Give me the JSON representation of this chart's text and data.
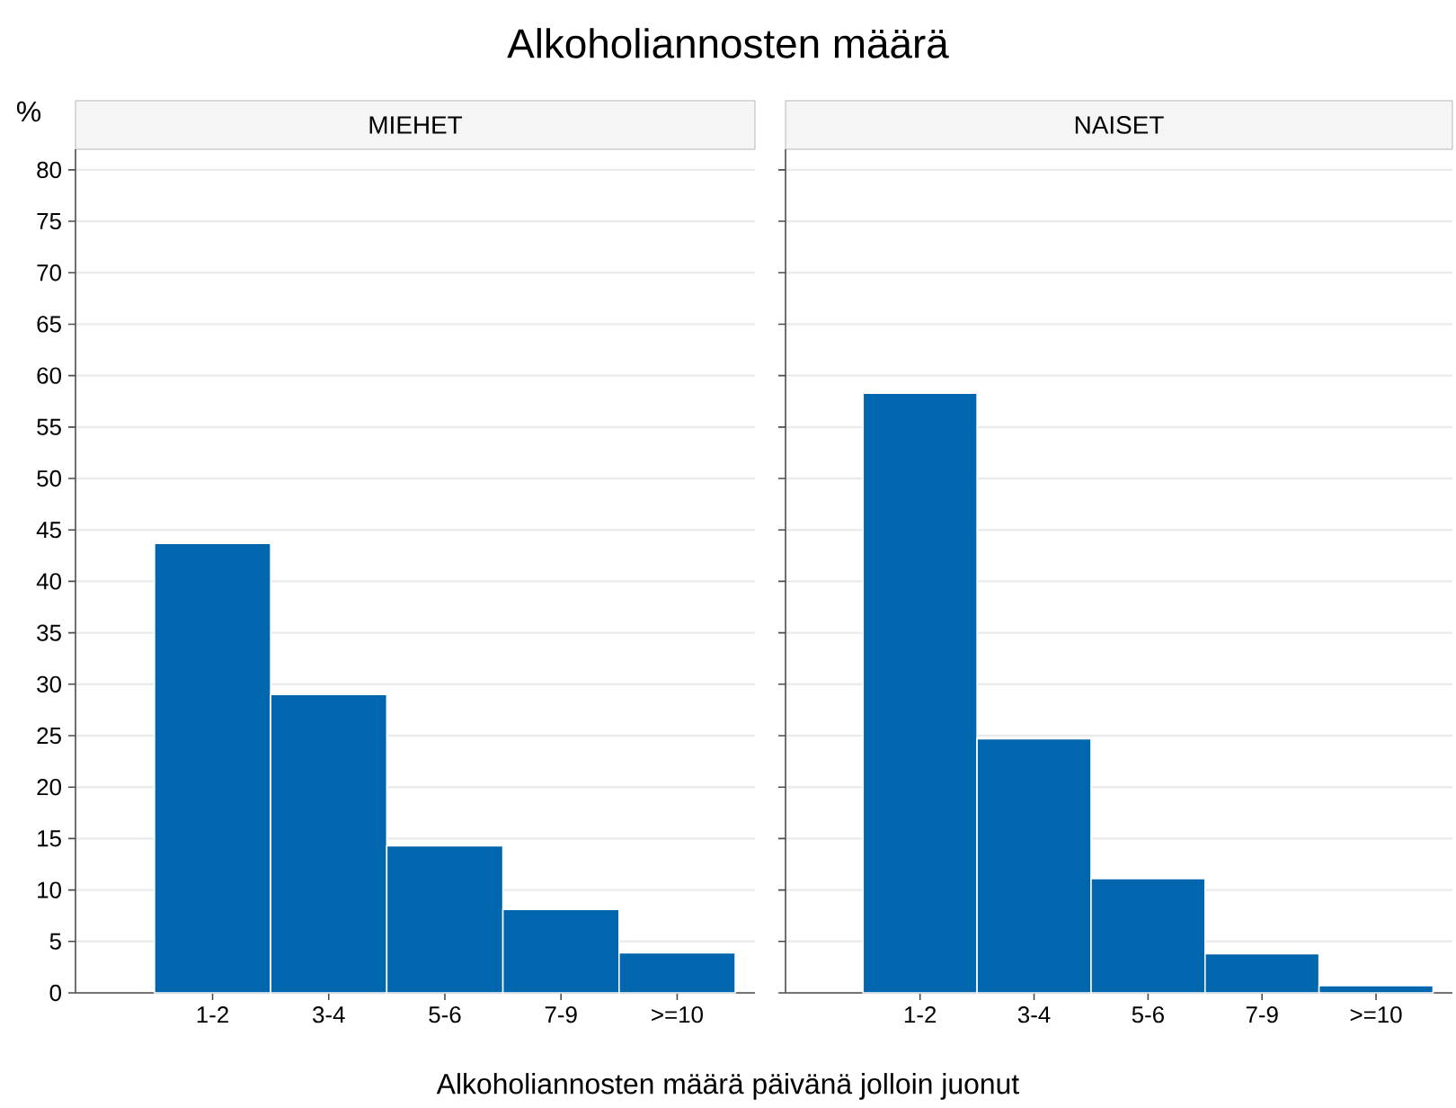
{
  "chart_data": [
    {
      "type": "bar",
      "title": "Alkoholiannosten määrä",
      "subtitle": "MIEHET",
      "xlabel": "Alkoholiannosten määrä päivänä jolloin juonut",
      "ylabel": "%",
      "categories": [
        "1-2",
        "3-4",
        "5-6",
        "7-9",
        ">=10"
      ],
      "values": [
        43.7,
        29.0,
        14.3,
        8.1,
        3.9
      ],
      "color": "#0066ad",
      "ylim": [
        0,
        82
      ],
      "yticks": [
        0,
        5,
        10,
        15,
        20,
        25,
        30,
        35,
        40,
        45,
        50,
        55,
        60,
        65,
        70,
        75,
        80
      ],
      "grid": "y"
    },
    {
      "type": "bar",
      "subtitle": "NAISET",
      "categories": [
        "1-2",
        "3-4",
        "5-6",
        "7-9",
        ">=10"
      ],
      "values": [
        58.3,
        24.7,
        11.1,
        3.8,
        0.7
      ],
      "color": "#0066ad",
      "ylim": [
        0,
        82
      ],
      "yticks": [
        0,
        5,
        10,
        15,
        20,
        25,
        30,
        35,
        40,
        45,
        50,
        55,
        60,
        65,
        70,
        75,
        80
      ],
      "grid": "y",
      "tick_labels": "x"
    }
  ]
}
